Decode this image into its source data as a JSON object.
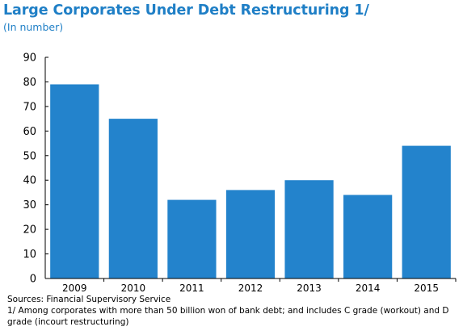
{
  "title": "Large Corporates Under Debt Restructuring 1/",
  "subtitle": "(In number)",
  "colors": {
    "title": "#1f7fc6",
    "bar": "#2383cc",
    "axis": "#000000"
  },
  "chart_data": {
    "type": "bar",
    "title": "Large Corporates Under Debt Restructuring 1/",
    "subtitle": "(In number)",
    "categories": [
      "2009",
      "2010",
      "2011",
      "2012",
      "2013",
      "2014",
      "2015"
    ],
    "values": [
      79,
      65,
      32,
      36,
      40,
      34,
      54
    ],
    "ylim": [
      0,
      90
    ],
    "yticks": [
      0,
      10,
      20,
      30,
      40,
      50,
      60,
      70,
      80,
      90
    ],
    "grid": false,
    "legend": "none"
  },
  "notes": {
    "source": "Sources: Financial Supervisory Service",
    "footnote": "1/ Among corporates with more than 50 billion won of bank debt; and includes C grade (workout) and D grade (incourt restructuring)"
  }
}
